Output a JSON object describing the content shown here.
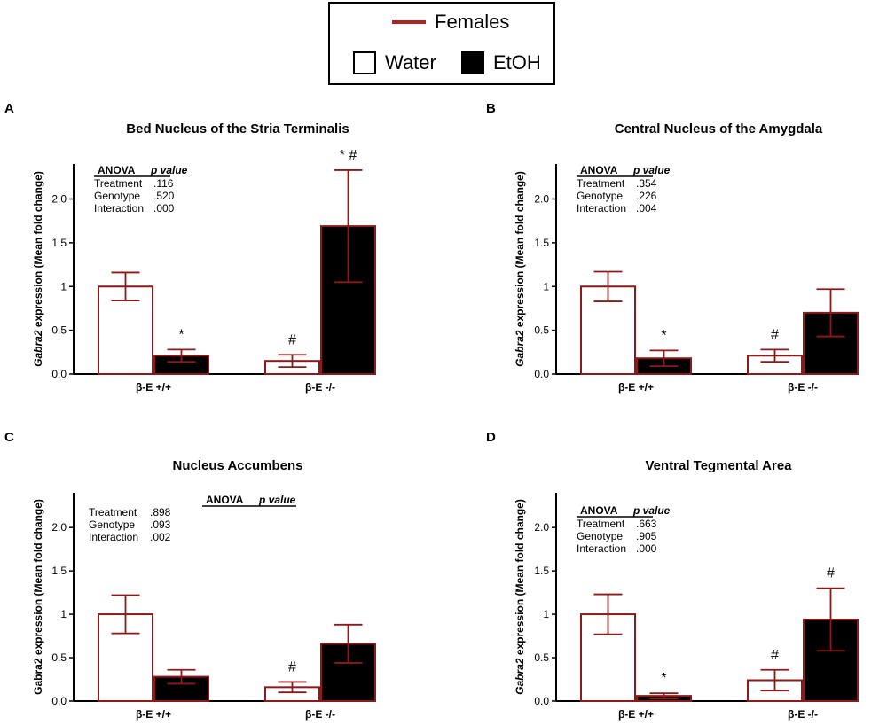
{
  "legend": {
    "series_label": "Females",
    "series_color": "#b32222",
    "water_label": "Water",
    "etoh_label": "EtOH"
  },
  "colors": {
    "bar_edge": "#8b1a1a",
    "water_fill": "#ffffff",
    "etoh_fill": "#000000"
  },
  "chart_data": [
    {
      "panel": "A",
      "type": "bar",
      "title": "Bed Nucleus of the Stria Terminalis",
      "ylabel_italic": "Gabra2",
      "ylabel_italic_part": true,
      "ylabel_rest": " expression (Mean fold change)",
      "ylim": [
        0,
        2.4
      ],
      "yticks": [
        "0.0",
        "0.5",
        "1",
        "1.5",
        "2.0"
      ],
      "ytick_values": [
        0,
        0.5,
        1,
        1.5,
        2.0
      ],
      "categories": [
        "β-E +/+",
        "β-E -/-"
      ],
      "series": [
        {
          "name": "Water",
          "values": [
            1.0,
            0.15
          ],
          "errors": [
            0.16,
            0.07
          ],
          "marks": [
            "",
            "#"
          ]
        },
        {
          "name": "EtOH",
          "values": [
            0.21,
            1.69
          ],
          "errors": [
            0.07,
            0.64
          ],
          "marks": [
            "*",
            "* #"
          ]
        }
      ],
      "anova": {
        "header": "ANOVA",
        "header_p": "p value",
        "rows": [
          {
            "factor": "Treatment",
            "p": ".116"
          },
          {
            "factor": "Genotype",
            "p": ".520"
          },
          {
            "factor": "Interaction",
            "p": ".000"
          }
        ],
        "placement": "top-left"
      }
    },
    {
      "panel": "B",
      "type": "bar",
      "title": "Central Nucleus of the Amygdala",
      "ylabel_italic": "Gabra2",
      "ylabel_italic_part": true,
      "ylabel_rest": " expression (Mean fold change)",
      "ylim": [
        0,
        2.4
      ],
      "yticks": [
        "0.0",
        "0.5",
        "1",
        "1.5",
        "2.0"
      ],
      "ytick_values": [
        0,
        0.5,
        1,
        1.5,
        2.0
      ],
      "categories": [
        "β-E +/+",
        "β-E -/-"
      ],
      "series": [
        {
          "name": "Water",
          "values": [
            1.0,
            0.21
          ],
          "errors": [
            0.17,
            0.07
          ],
          "marks": [
            "",
            "#"
          ]
        },
        {
          "name": "EtOH",
          "values": [
            0.18,
            0.7
          ],
          "errors": [
            0.09,
            0.27
          ],
          "marks": [
            "*",
            ""
          ]
        }
      ],
      "anova": {
        "header": "ANOVA",
        "header_p": "p value",
        "rows": [
          {
            "factor": "Treatment",
            "p": ".354"
          },
          {
            "factor": "Genotype",
            "p": ".226"
          },
          {
            "factor": "Interaction",
            "p": ".004"
          }
        ],
        "placement": "top-left"
      }
    },
    {
      "panel": "C",
      "type": "bar",
      "title": "Nucleus Accumbens",
      "ylabel_italic": "",
      "ylabel_italic_part": false,
      "ylabel_rest": "Gabra2 expression (Mean fold change)",
      "ylim": [
        0,
        2.4
      ],
      "yticks": [
        "0.0",
        "0.5",
        "1",
        "1.5",
        "2.0"
      ],
      "ytick_values": [
        0,
        0.5,
        1,
        1.5,
        2.0
      ],
      "categories": [
        "β-E +/+",
        "β-E -/-"
      ],
      "series": [
        {
          "name": "Water",
          "values": [
            1.0,
            0.16
          ],
          "errors": [
            0.22,
            0.06
          ],
          "marks": [
            "",
            "#"
          ]
        },
        {
          "name": "EtOH",
          "values": [
            0.28,
            0.66
          ],
          "errors": [
            0.08,
            0.22
          ],
          "marks": [
            "",
            ""
          ]
        }
      ],
      "anova": {
        "header": "ANOVA",
        "header_p": "p value",
        "rows": [
          {
            "factor": "Treatment",
            "p": ".898"
          },
          {
            "factor": "Genotype",
            "p": ".093"
          },
          {
            "factor": "Interaction",
            "p": ".002"
          }
        ],
        "placement": "header-center"
      }
    },
    {
      "panel": "D",
      "type": "bar",
      "title": "Ventral Tegmental Area",
      "ylabel_italic": "Gabra2",
      "ylabel_italic_part": true,
      "ylabel_rest": " expression (Mean fold change)",
      "ylim": [
        0,
        2.4
      ],
      "yticks": [
        "0.0",
        "0.5",
        "1",
        "1.5",
        "2.0"
      ],
      "ytick_values": [
        0,
        0.5,
        1,
        1.5,
        2.0
      ],
      "categories": [
        "β-E +/+",
        "β-E -/-"
      ],
      "series": [
        {
          "name": "Water",
          "values": [
            1.0,
            0.24
          ],
          "errors": [
            0.23,
            0.12
          ],
          "marks": [
            "",
            "#"
          ]
        },
        {
          "name": "EtOH",
          "values": [
            0.06,
            0.94
          ],
          "errors": [
            0.03,
            0.36
          ],
          "marks": [
            "*",
            "#"
          ]
        }
      ],
      "anova": {
        "header": "ANOVA",
        "header_p": "p value",
        "rows": [
          {
            "factor": "Treatment",
            "p": ".663"
          },
          {
            "factor": "Genotype",
            "p": ".905"
          },
          {
            "factor": "Interaction",
            "p": ".000"
          }
        ],
        "placement": "top-left"
      }
    }
  ]
}
